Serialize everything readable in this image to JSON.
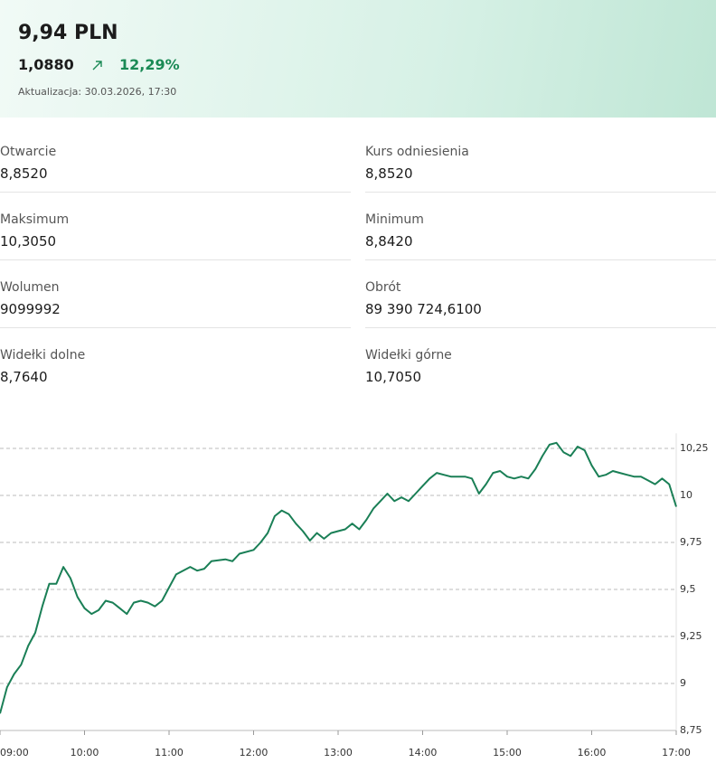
{
  "header": {
    "price": "9,94 PLN",
    "change": "1,0880",
    "change_pct": "12,29%",
    "updated": "Aktualizacja: 30.03.2026, 17:30"
  },
  "stats": [
    {
      "label": "Otwarcie",
      "value": "8,8520"
    },
    {
      "label": "Kurs odniesienia",
      "value": "8,8520"
    },
    {
      "label": "Maksimum",
      "value": "10,3050"
    },
    {
      "label": "Minimum",
      "value": "8,8420"
    },
    {
      "label": "Wolumen",
      "value": "9099992"
    },
    {
      "label": "Obrót",
      "value": "89 390 724,6100"
    },
    {
      "label": "Widełki dolne",
      "value": "8,7640"
    },
    {
      "label": "Widełki górne",
      "value": "10,7050"
    }
  ],
  "chart_data": {
    "type": "line",
    "color": "#1a7f56",
    "grid": true,
    "x": [
      "09:00",
      "09:05",
      "09:10",
      "09:15",
      "09:20",
      "09:25",
      "09:30",
      "09:35",
      "09:40",
      "09:45",
      "09:50",
      "09:55",
      "10:00",
      "10:05",
      "10:10",
      "10:15",
      "10:20",
      "10:25",
      "10:30",
      "10:35",
      "10:40",
      "10:45",
      "10:50",
      "10:55",
      "11:00",
      "11:05",
      "11:10",
      "11:15",
      "11:20",
      "11:25",
      "11:30",
      "11:40",
      "11:45",
      "11:50",
      "12:00",
      "12:05",
      "12:10",
      "12:15",
      "12:20",
      "12:25",
      "12:30",
      "12:35",
      "12:40",
      "12:45",
      "12:50",
      "12:55",
      "13:00",
      "13:05",
      "13:10",
      "13:15",
      "13:20",
      "13:25",
      "13:30",
      "13:35",
      "13:40",
      "13:45",
      "13:50",
      "13:55",
      "14:00",
      "14:05",
      "14:10",
      "14:15",
      "14:20",
      "14:25",
      "14:30",
      "14:35",
      "14:40",
      "14:45",
      "14:50",
      "14:55",
      "15:00",
      "15:05",
      "15:10",
      "15:15",
      "15:20",
      "15:25",
      "15:30",
      "15:35",
      "15:40",
      "15:45",
      "15:50",
      "15:55",
      "16:00",
      "16:05",
      "16:10",
      "16:15",
      "16:20",
      "16:25",
      "16:30",
      "16:35",
      "16:40",
      "16:45",
      "16:50",
      "16:55",
      "17:00"
    ],
    "values": [
      8.84,
      8.98,
      9.05,
      9.1,
      9.2,
      9.27,
      9.41,
      9.53,
      9.53,
      9.62,
      9.56,
      9.46,
      9.4,
      9.37,
      9.39,
      9.44,
      9.43,
      9.4,
      9.37,
      9.43,
      9.44,
      9.43,
      9.41,
      9.44,
      9.51,
      9.58,
      9.6,
      9.62,
      9.6,
      9.61,
      9.65,
      9.66,
      9.65,
      9.69,
      9.71,
      9.75,
      9.8,
      9.89,
      9.92,
      9.9,
      9.85,
      9.81,
      9.76,
      9.8,
      9.77,
      9.8,
      9.81,
      9.82,
      9.85,
      9.82,
      9.87,
      9.93,
      9.97,
      10.01,
      9.97,
      9.99,
      9.97,
      10.01,
      10.05,
      10.09,
      10.12,
      10.11,
      10.1,
      10.1,
      10.1,
      10.09,
      10.01,
      10.06,
      10.12,
      10.13,
      10.1,
      10.09,
      10.1,
      10.09,
      10.14,
      10.21,
      10.27,
      10.28,
      10.23,
      10.21,
      10.26,
      10.24,
      10.16,
      10.1,
      10.11,
      10.13,
      10.12,
      10.11,
      10.1,
      10.1,
      10.08,
      10.06,
      10.09,
      10.06,
      9.94
    ],
    "xlim": [
      "09:00",
      "17:00"
    ],
    "xticks": [
      "09:00",
      "10:00",
      "11:00",
      "12:00",
      "13:00",
      "14:00",
      "15:00",
      "16:00",
      "17:00"
    ],
    "ylim": [
      8.75,
      10.33
    ],
    "yticks": [
      {
        "value": 8.75,
        "label": "8,75"
      },
      9,
      {
        "value": 9.25,
        "label": "9,25"
      },
      {
        "value": 9.5,
        "label": "9,5"
      },
      {
        "value": 9.75,
        "label": "9,75"
      },
      10,
      {
        "value": 10.25,
        "label": "10,25"
      }
    ]
  }
}
